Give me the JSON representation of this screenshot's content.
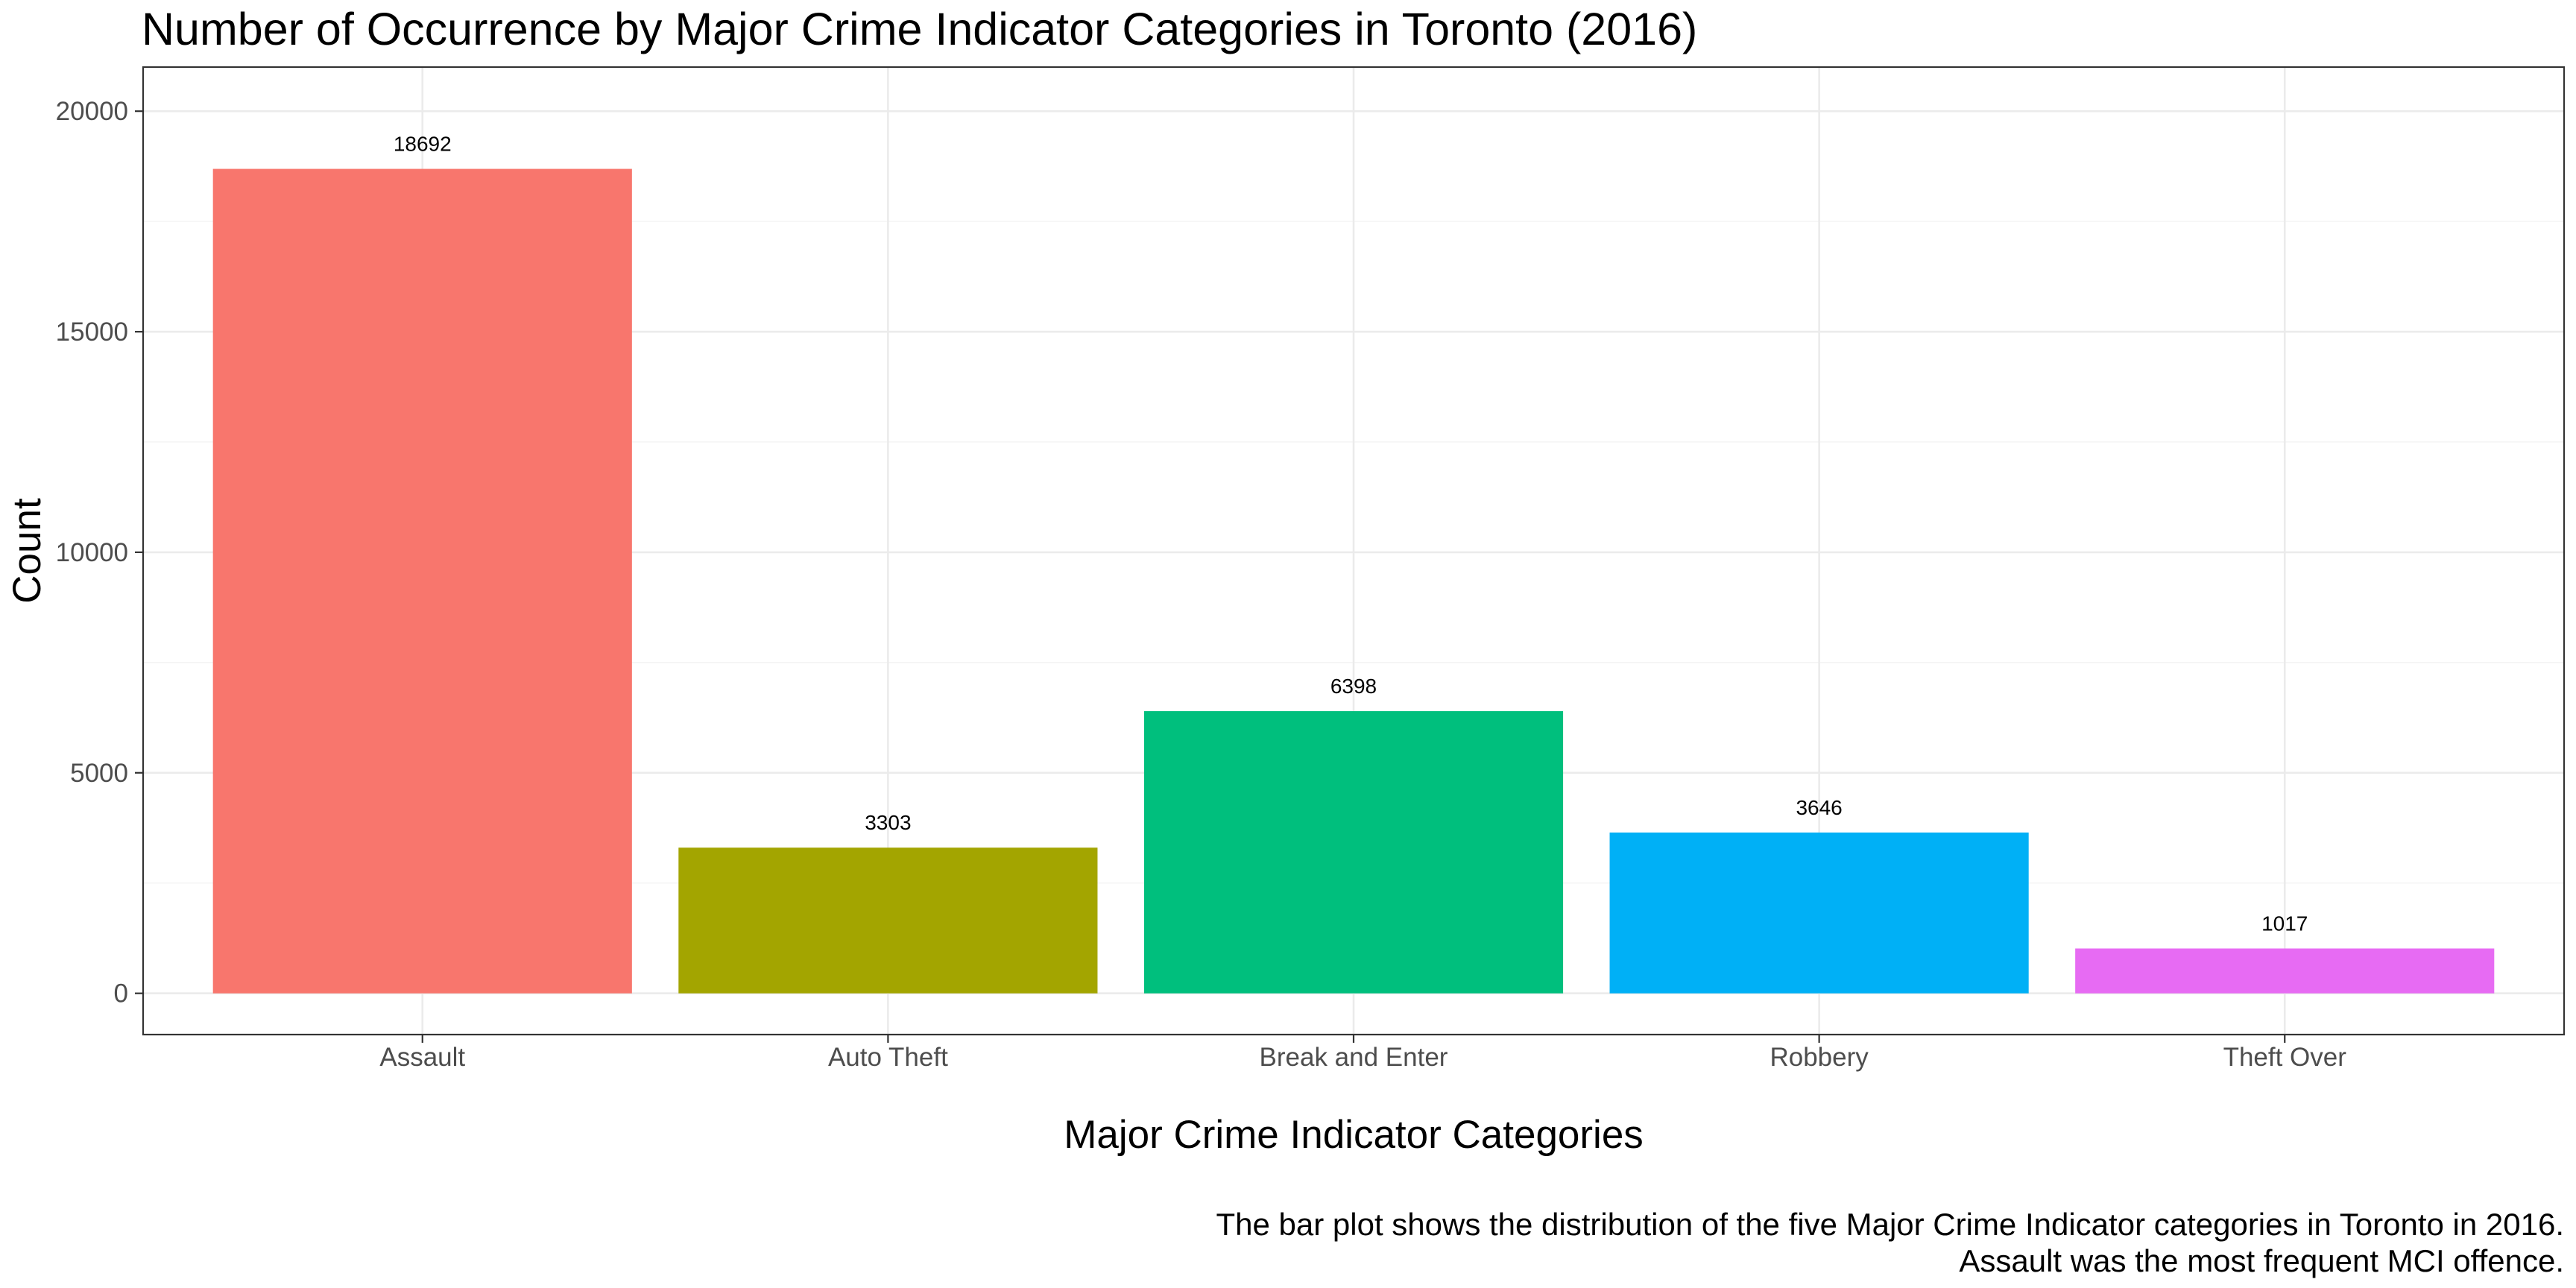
{
  "chart_data": {
    "type": "bar",
    "title": "Number of Occurrence by Major Crime Indicator Categories in Toronto (2016)",
    "xlabel": "Major Crime Indicator Categories",
    "ylabel": "Count",
    "categories": [
      "Assault",
      "Auto Theft",
      "Break and Enter",
      "Robbery",
      "Theft Over"
    ],
    "values": [
      18692,
      3303,
      6398,
      3646,
      1017
    ],
    "data_labels": [
      "18692",
      "3303",
      "6398",
      "3646",
      "1017"
    ],
    "colors": [
      "#F8766D",
      "#A3A500",
      "#00BF7D",
      "#00B0F6",
      "#E76BF3"
    ],
    "yticks": [
      0,
      5000,
      10000,
      15000,
      20000
    ],
    "ytick_labels": [
      "0",
      "5000",
      "10000",
      "15000",
      "20000"
    ],
    "ylim": [
      -935,
      21000
    ],
    "grid": true,
    "legend": "none",
    "caption": [
      "The bar plot shows the distribution of the five Major Crime Indicator categories in Toronto in 2016.",
      "Assault was the most frequent MCI offence."
    ]
  }
}
